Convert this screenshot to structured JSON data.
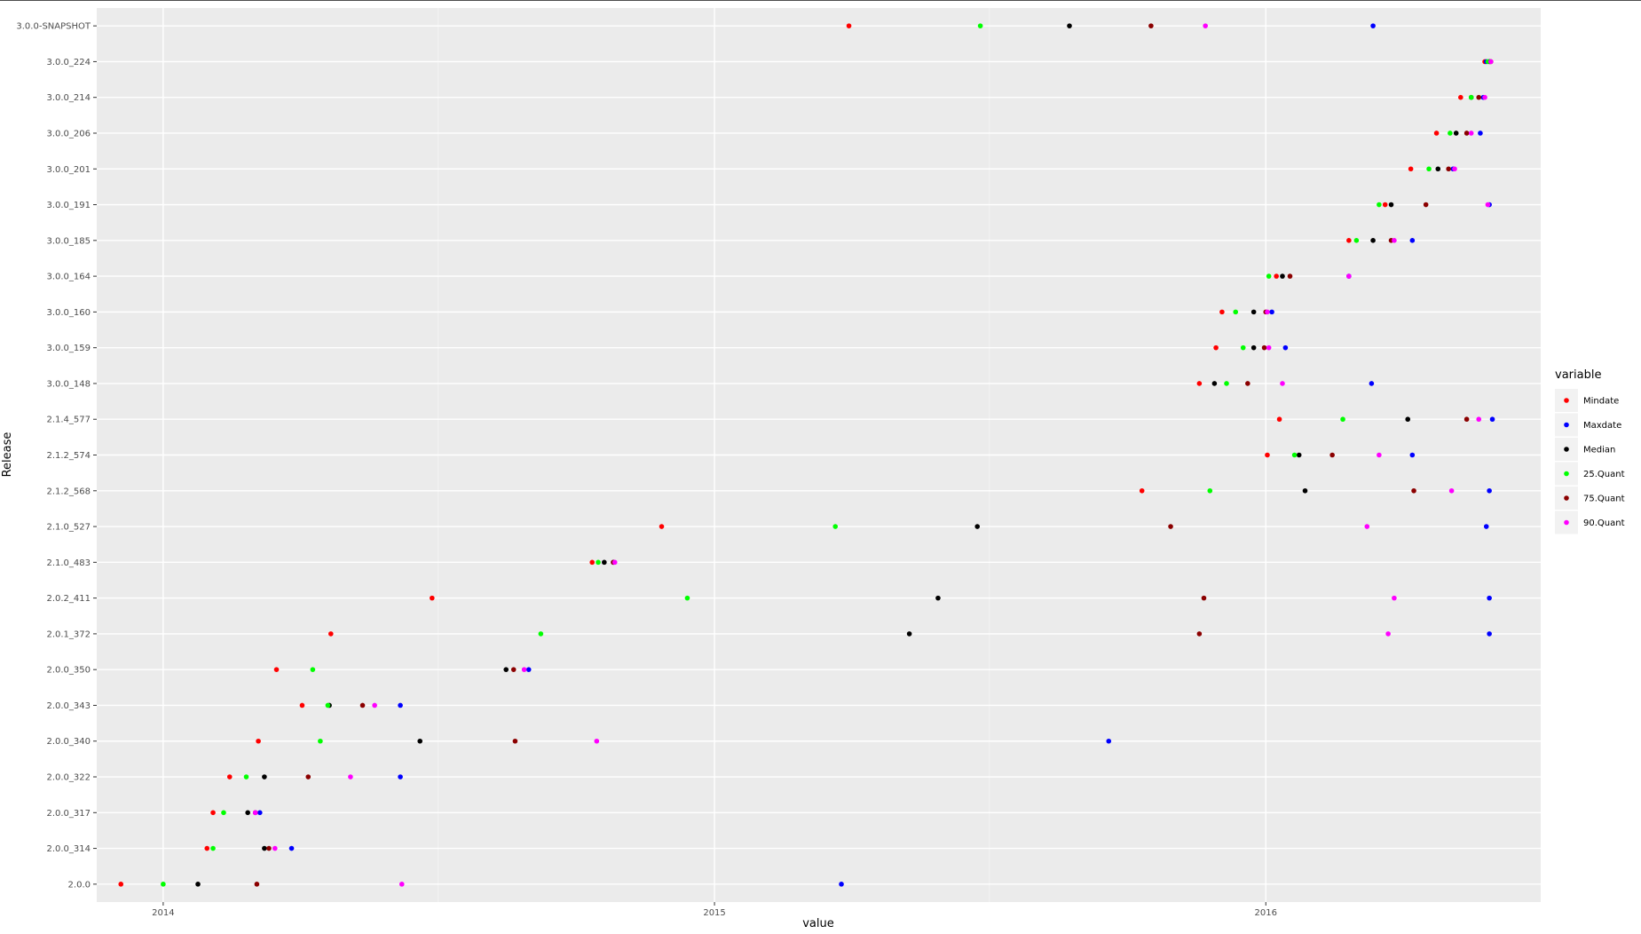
{
  "chart_data": {
    "type": "scatter",
    "xlabel": "value",
    "ylabel": "Release",
    "x_ticks": [
      "2014",
      "2015",
      "2016"
    ],
    "y_categories": [
      "2.0.0",
      "2.0.0_314",
      "2.0.0_317",
      "2.0.0_322",
      "2.0.0_340",
      "2.0.0_343",
      "2.0.0_350",
      "2.0.1_372",
      "2.0.2_411",
      "2.1.0_483",
      "2.1.0_527",
      "2.1.2_568",
      "2.1.2_574",
      "2.1.4_577",
      "3.0.0_148",
      "3.0.0_159",
      "3.0.0_160",
      "3.0.0_164",
      "3.0.0_185",
      "3.0.0_191",
      "3.0.0_201",
      "3.0.0_206",
      "3.0.0_214",
      "3.0.0_224",
      "3.0.0-SNAPSHOT"
    ],
    "xlim": [
      "2013-11-18",
      "2016-07-01"
    ],
    "grid": true,
    "legend_position": "right",
    "legend": {
      "title": "variable",
      "entries": [
        "Mindate",
        "Maxdate",
        "Median",
        "25.Quant",
        "75.Quant",
        "90.Quant"
      ]
    },
    "series": [
      {
        "name": "Mindate",
        "color": "#ff0000",
        "values": [
          "2013-12-04",
          "2014-01-30",
          "2014-02-03",
          "2014-02-14",
          "2014-03-05",
          "2014-04-03",
          "2014-03-17",
          "2014-04-22",
          "2014-06-28",
          "2014-10-12",
          "2014-11-27",
          "2015-10-11",
          "2016-01-02",
          "2016-01-10",
          "2015-11-18",
          "2015-11-29",
          "2015-12-03",
          "2016-01-08",
          "2016-02-25",
          "2016-03-20",
          "2016-04-06",
          "2016-04-23",
          "2016-05-09",
          "2016-05-25",
          "2015-03-31"
        ]
      },
      {
        "name": "Maxdate",
        "color": "#0000ff",
        "values": [
          "2015-03-26",
          "2014-03-27",
          "2014-03-06",
          "2014-06-07",
          "2015-09-19",
          "2014-06-07",
          "2014-08-31",
          "2016-05-28",
          "2016-05-28",
          "2014-10-26",
          "2016-05-26",
          "2016-05-28",
          "2016-04-07",
          "2016-05-30",
          "2016-03-11",
          "2016-01-14",
          "2016-01-05",
          "2016-02-25",
          "2016-04-07",
          "2016-05-28",
          "2016-05-04",
          "2016-05-22",
          "2016-05-24",
          "2016-05-26",
          "2016-03-12"
        ]
      },
      {
        "name": "Median",
        "color": "#000000",
        "values": [
          "2014-01-24",
          "2014-03-09",
          "2014-02-26",
          "2014-03-09",
          "2014-06-20",
          "2014-04-21",
          "2014-08-16",
          "2015-05-10",
          "2015-05-29",
          "2014-10-20",
          "2015-06-24",
          "2016-01-27",
          "2016-01-23",
          "2016-04-04",
          "2015-11-28",
          "2015-12-24",
          "2015-12-24",
          "2016-01-12",
          "2016-03-12",
          "2016-03-24",
          "2016-04-24",
          "2016-05-06",
          "2016-05-16",
          "2016-05-28",
          "2015-08-24"
        ]
      },
      {
        "name": "25.Quant",
        "color": "#00ff00",
        "values": [
          "2014-01-01",
          "2014-02-03",
          "2014-02-10",
          "2014-02-25",
          "2014-04-15",
          "2014-04-20",
          "2014-04-10",
          "2014-09-08",
          "2014-12-14",
          "2014-10-16",
          "2015-03-22",
          "2015-11-25",
          "2016-01-20",
          "2016-02-21",
          "2015-12-06",
          "2015-12-17",
          "2015-12-12",
          "2016-01-03",
          "2016-03-01",
          "2016-03-16",
          "2016-04-18",
          "2016-05-02",
          "2016-05-16",
          "2016-05-27",
          "2015-06-26"
        ]
      },
      {
        "name": "75.Quant",
        "color": "#8b0000",
        "values": [
          "2014-03-04",
          "2014-03-12",
          "2014-03-03",
          "2014-04-07",
          "2014-08-22",
          "2014-05-13",
          "2014-08-21",
          "2015-11-18",
          "2015-11-21",
          "2014-10-26",
          "2015-10-30",
          "2016-04-08",
          "2016-02-14",
          "2016-05-13",
          "2015-12-20",
          "2015-12-31",
          "2016-01-01",
          "2016-01-17",
          "2016-03-24",
          "2016-04-16",
          "2016-05-01",
          "2016-05-13",
          "2016-05-21",
          "2016-05-29",
          "2015-10-17"
        ]
      },
      {
        "name": "90.Quant",
        "color": "#ff00ff",
        "values": [
          "2014-06-08",
          "2014-03-16",
          "2014-03-03",
          "2014-05-05",
          "2014-10-15",
          "2014-05-21",
          "2014-08-28",
          "2016-03-22",
          "2016-03-26",
          "2014-10-27",
          "2016-03-08",
          "2016-05-03",
          "2016-03-16",
          "2016-05-21",
          "2016-01-12",
          "2016-01-03",
          "2016-01-02",
          "2016-02-25",
          "2016-03-26",
          "2016-05-27",
          "2016-05-05",
          "2016-05-16",
          "2016-05-25",
          "2016-05-29",
          "2015-11-22"
        ]
      }
    ]
  }
}
